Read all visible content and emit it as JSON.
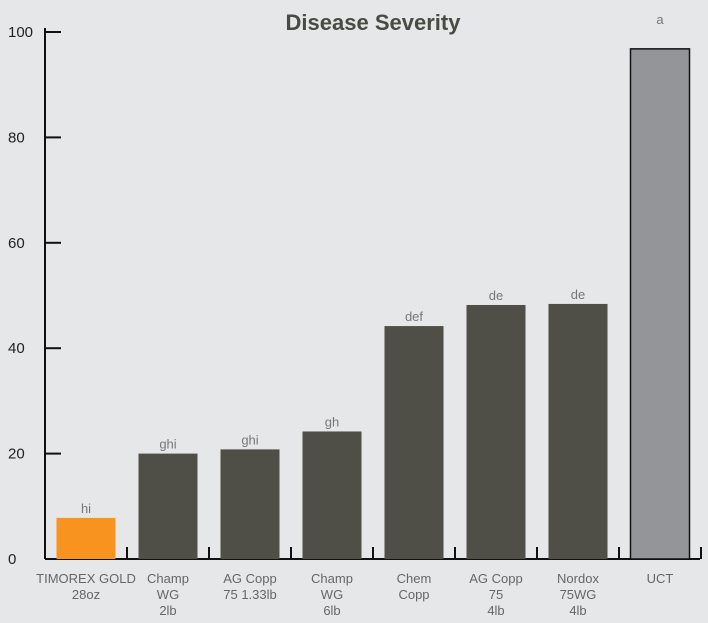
{
  "chart_data": {
    "type": "bar",
    "title": "Disease Severity",
    "xlabel": "",
    "ylabel": "",
    "ylim": [
      0,
      100
    ],
    "yticks": [
      0,
      20,
      40,
      60,
      80,
      100
    ],
    "grid": false,
    "categories": [
      [
        "TIMOREX GOLD",
        "28oz"
      ],
      [
        "Champ",
        "WG",
        "2lb"
      ],
      [
        "AG Copp",
        "75 1.33lb"
      ],
      [
        "Champ",
        "WG",
        "6lb"
      ],
      [
        "Chem",
        "Copp"
      ],
      [
        "AG Copp",
        "75",
        "4lb"
      ],
      [
        "Nordox",
        "75WG",
        "4lb"
      ],
      [
        "UCT"
      ]
    ],
    "values": [
      7.8,
      20,
      20.8,
      24.2,
      44.2,
      48.2,
      48.4,
      96.8
    ],
    "significance_letters": [
      "hi",
      "ghi",
      "ghi",
      "gh",
      "def",
      "de",
      "de",
      "a"
    ],
    "bar_colors": [
      "#f7931e",
      "#4f4f48",
      "#4f4f48",
      "#4f4f48",
      "#4f4f48",
      "#4f4f48",
      "#4f4f48",
      "#939598"
    ]
  }
}
